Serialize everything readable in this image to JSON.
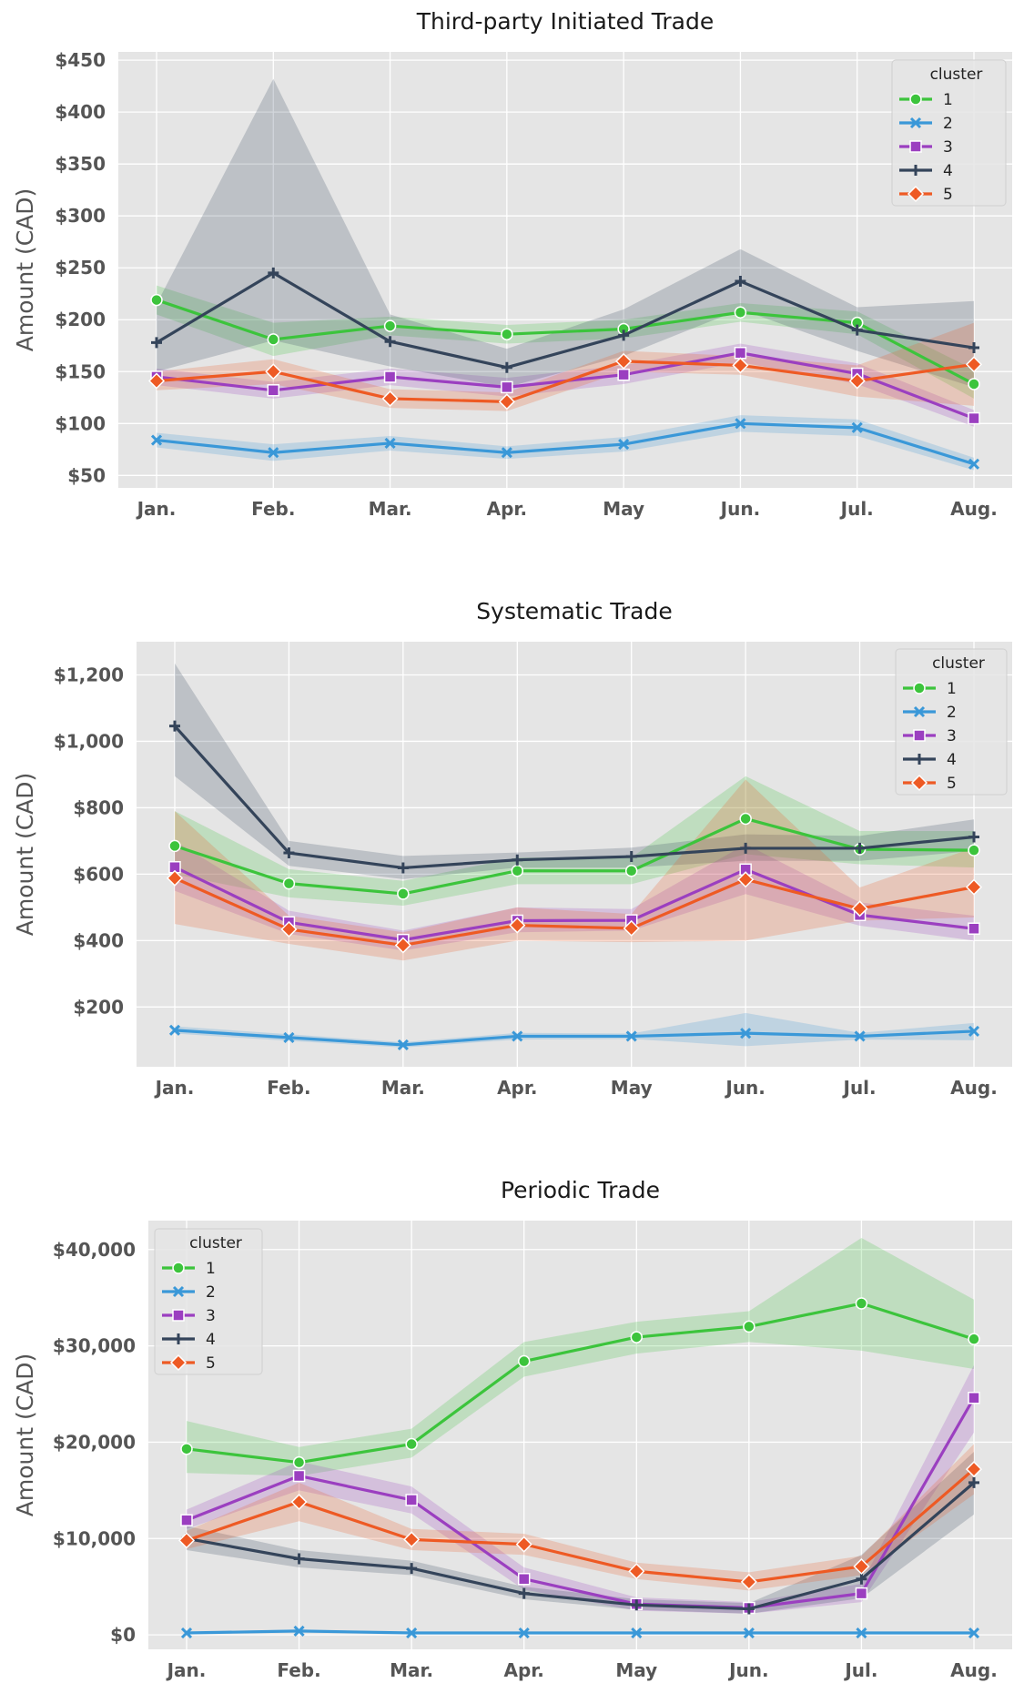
{
  "colors": {
    "plot_background": "#e5e5e5",
    "grid": "#ffffff",
    "series": {
      "1": "#3cc43c",
      "2": "#3a98d8",
      "3": "#9b3fc0",
      "4": "#34445a",
      "5": "#ee5a24"
    }
  },
  "chart_data": [
    {
      "type": "line",
      "title": "Third-party Initiated Trade",
      "xlabel": "",
      "ylabel": "Amount (CAD)",
      "categories": [
        "Jan.",
        "Feb.",
        "Mar.",
        "Apr.",
        "May",
        "Jun.",
        "Jul.",
        "Aug."
      ],
      "ylim": [
        38,
        458
      ],
      "yticks": [
        50,
        100,
        150,
        200,
        250,
        300,
        350,
        400,
        450
      ],
      "ytick_labels": [
        "$50",
        "$100",
        "$150",
        "$200",
        "$250",
        "$300",
        "$350",
        "$400",
        "$450"
      ],
      "grid": true,
      "legend": {
        "title": "cluster",
        "position": "top-right"
      },
      "series": [
        {
          "name": "1",
          "marker": "circle",
          "values": [
            219,
            181,
            194,
            186,
            191,
            207,
            197,
            138
          ],
          "lower": [
            205,
            165,
            185,
            177,
            182,
            198,
            186,
            124
          ],
          "upper": [
            233,
            197,
            203,
            195,
            200,
            216,
            208,
            152
          ]
        },
        {
          "name": "2",
          "marker": "x",
          "values": [
            84,
            72,
            81,
            72,
            80,
            100,
            96,
            61
          ],
          "lower": [
            77,
            64,
            74,
            66,
            73,
            92,
            88,
            55
          ],
          "upper": [
            91,
            80,
            88,
            78,
            87,
            108,
            104,
            67
          ]
        },
        {
          "name": "3",
          "marker": "square",
          "values": [
            145,
            132,
            145,
            135,
            147,
            168,
            148,
            105
          ],
          "lower": [
            137,
            124,
            137,
            126,
            138,
            159,
            138,
            97
          ],
          "upper": [
            153,
            140,
            153,
            144,
            156,
            177,
            158,
            113
          ]
        },
        {
          "name": "4",
          "marker": "plus",
          "values": [
            178,
            245,
            179,
            154,
            185,
            237,
            190,
            173
          ],
          "lower": [
            150,
            180,
            155,
            135,
            165,
            210,
            170,
            135
          ],
          "upper": [
            215,
            432,
            205,
            172,
            210,
            268,
            212,
            218
          ]
        },
        {
          "name": "5",
          "marker": "diamond",
          "values": [
            141,
            150,
            124,
            121,
            160,
            156,
            141,
            157
          ],
          "lower": [
            132,
            138,
            115,
            112,
            150,
            147,
            126,
            117
          ],
          "upper": [
            150,
            162,
            133,
            130,
            170,
            165,
            156,
            197
          ]
        }
      ]
    },
    {
      "type": "line",
      "title": "Systematic Trade",
      "xlabel": "",
      "ylabel": "Amount (CAD)",
      "categories": [
        "Jan.",
        "Feb.",
        "Mar.",
        "Apr.",
        "May",
        "Jun.",
        "Jul.",
        "Aug."
      ],
      "ylim": [
        20,
        1300
      ],
      "yticks": [
        200,
        400,
        600,
        800,
        1000,
        1200
      ],
      "ytick_labels": [
        "$200",
        "$400",
        "$600",
        "$800",
        "$1,000",
        "$1,200"
      ],
      "grid": true,
      "legend": {
        "title": "cluster",
        "position": "top-right"
      },
      "series": [
        {
          "name": "1",
          "marker": "circle",
          "values": [
            685,
            572,
            541,
            610,
            610,
            767,
            675,
            672
          ],
          "lower": [
            600,
            530,
            505,
            570,
            570,
            660,
            630,
            620
          ],
          "upper": [
            790,
            615,
            580,
            650,
            650,
            895,
            730,
            730
          ]
        },
        {
          "name": "2",
          "marker": "x",
          "values": [
            130,
            108,
            86,
            112,
            112,
            121,
            112,
            127
          ],
          "lower": [
            120,
            98,
            78,
            102,
            104,
            82,
            102,
            100
          ],
          "upper": [
            142,
            118,
            94,
            122,
            120,
            182,
            122,
            152
          ]
        },
        {
          "name": "3",
          "marker": "square",
          "values": [
            621,
            455,
            402,
            460,
            461,
            614,
            477,
            436
          ],
          "lower": [
            550,
            420,
            370,
            425,
            430,
            540,
            445,
            400
          ],
          "upper": [
            700,
            490,
            430,
            500,
            495,
            690,
            515,
            475
          ]
        },
        {
          "name": "4",
          "marker": "plus",
          "values": [
            1046,
            664,
            619,
            643,
            653,
            678,
            678,
            712
          ],
          "lower": [
            895,
            625,
            585,
            620,
            620,
            640,
            640,
            670
          ],
          "upper": [
            1235,
            700,
            655,
            665,
            680,
            720,
            715,
            765
          ]
        },
        {
          "name": "5",
          "marker": "diamond",
          "values": [
            588,
            434,
            386,
            446,
            437,
            584,
            496,
            561
          ],
          "lower": [
            450,
            390,
            340,
            400,
            395,
            400,
            460,
            470
          ],
          "upper": [
            790,
            475,
            425,
            500,
            480,
            885,
            560,
            680
          ]
        }
      ]
    },
    {
      "type": "line",
      "title": "Periodic Trade",
      "xlabel": "",
      "ylabel": "Amount (CAD)",
      "categories": [
        "Jan.",
        "Feb.",
        "Mar.",
        "Apr.",
        "May",
        "Jun.",
        "Jul.",
        "Aug."
      ],
      "ylim": [
        -1500,
        43000
      ],
      "yticks": [
        0,
        10000,
        20000,
        30000,
        40000
      ],
      "ytick_labels": [
        "$0",
        "$10,000",
        "$20,000",
        "$30,000",
        "$40,000"
      ],
      "grid": true,
      "legend": {
        "title": "cluster",
        "position": "top-left"
      },
      "series": [
        {
          "name": "1",
          "marker": "circle",
          "values": [
            19300,
            17900,
            19800,
            28400,
            30900,
            32000,
            34400,
            30700
          ],
          "lower": [
            16800,
            16500,
            18400,
            26800,
            29200,
            30400,
            29500,
            27600
          ],
          "upper": [
            22200,
            19500,
            21400,
            30400,
            32500,
            33600,
            41200,
            34800
          ]
        },
        {
          "name": "2",
          "marker": "x",
          "values": [
            200,
            400,
            200,
            200,
            200,
            200,
            200,
            200
          ],
          "lower": [
            100,
            250,
            100,
            100,
            100,
            100,
            100,
            100
          ],
          "upper": [
            300,
            550,
            300,
            300,
            300,
            300,
            300,
            300
          ]
        },
        {
          "name": "3",
          "marker": "square",
          "values": [
            11900,
            16500,
            14000,
            5800,
            3200,
            2800,
            4300,
            24600
          ],
          "lower": [
            11000,
            15000,
            12600,
            4700,
            2500,
            2200,
            3400,
            21000
          ],
          "upper": [
            13000,
            18000,
            15400,
            7000,
            3900,
            3400,
            5300,
            28000
          ]
        },
        {
          "name": "4",
          "marker": "plus",
          "values": [
            10000,
            7900,
            6900,
            4300,
            3100,
            2700,
            5800,
            15800
          ],
          "lower": [
            8800,
            7000,
            6200,
            3700,
            2600,
            2200,
            3800,
            12500
          ],
          "upper": [
            11300,
            8800,
            7700,
            5000,
            3700,
            3300,
            8300,
            19000
          ]
        },
        {
          "name": "5",
          "marker": "diamond",
          "values": [
            9800,
            13800,
            9900,
            9400,
            6600,
            5500,
            7100,
            17200
          ],
          "lower": [
            8900,
            11800,
            8800,
            8300,
            5800,
            4600,
            6200,
            14600
          ],
          "upper": [
            10800,
            15800,
            11000,
            10500,
            7500,
            6500,
            8200,
            19800
          ]
        }
      ]
    }
  ]
}
